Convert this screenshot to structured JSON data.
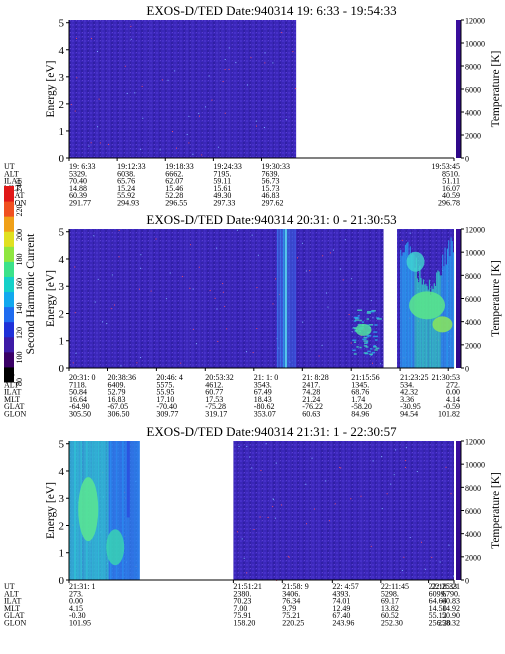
{
  "colorbar": {
    "label": "Second Harmonic Current",
    "ticks": [
      80,
      100,
      120,
      140,
      160,
      180,
      200,
      220,
      240
    ],
    "range": [
      80,
      240
    ],
    "colors": [
      "#000000",
      "#3a0066",
      "#3d1aa6",
      "#1f30d8",
      "#1f6cf0",
      "#12a8ee",
      "#15d0c8",
      "#3ce28a",
      "#8fe640",
      "#e0e020",
      "#f0a018",
      "#f05020",
      "#e01818"
    ]
  },
  "colors": {
    "background_plasma": "#3a24b6",
    "no_data": "#ffffff",
    "temperature_bar": "#3b0fa0",
    "accent_lines": "#3ad8e8"
  },
  "chart_data": [
    {
      "type": "heatmap",
      "title": "EXOS-D/TED   Date:940314  19: 6:33 - 19:54:33",
      "ylabel": "Energy [eV]",
      "y2label": "Temperature [K]",
      "yticks": [
        0,
        1,
        2,
        3,
        4,
        5
      ],
      "ylim": [
        0,
        5.1
      ],
      "y2ticks": [
        0,
        2000,
        4000,
        6000,
        8000,
        10000,
        12000
      ],
      "y2lim": [
        0,
        12000
      ],
      "time_range": [
        "19:06:33",
        "19:54:33"
      ],
      "data_coverage": [
        [
          0,
          0.59
        ]
      ],
      "features": [],
      "ephemeris": {
        "rows": [
          "UT",
          "ALT",
          "ILAT",
          "MLT",
          "GLAT",
          "GLON"
        ],
        "columns": [
          {
            "pos": 0.0,
            "values": [
              "19: 6:33",
              "5329.",
              "70.40",
              "14.88",
              "60.39",
              "291.77"
            ]
          },
          {
            "pos": 0.125,
            "values": [
              "19:12:33",
              "6038.",
              "65.76",
              "15.24",
              "55.92",
              "294.93"
            ]
          },
          {
            "pos": 0.25,
            "values": [
              "19:18:33",
              "6662.",
              "62.07",
              "15.46",
              "52.28",
              "296.55"
            ]
          },
          {
            "pos": 0.375,
            "values": [
              "19:24:33",
              "7195.",
              "59.11",
              "15.61",
              "49.30",
              "297.33"
            ]
          },
          {
            "pos": 0.5,
            "values": [
              "19:30:33",
              "7639.",
              "56.73",
              "15.73",
              "46.83",
              "297.62"
            ]
          },
          {
            "pos": 1.0,
            "values": [
              "19:53:45",
              "8510.",
              "51.11",
              "16.07",
              "40.59",
              "296.78"
            ]
          }
        ]
      }
    },
    {
      "type": "heatmap",
      "title": "EXOS-D/TED   Date:940314  20:31: 0 - 21:30:53",
      "ylabel": "Energy [eV]",
      "y2label": "Temperature [K]",
      "yticks": [
        0,
        1,
        2,
        3,
        4,
        5
      ],
      "ylim": [
        0,
        5.1
      ],
      "y2ticks": [
        0,
        2000,
        4000,
        6000,
        8000,
        10000,
        12000
      ],
      "y2lim": [
        0,
        12000
      ],
      "time_range": [
        "20:31:00",
        "21:30:53"
      ],
      "data_coverage": [
        [
          0,
          0.817
        ],
        [
          0.852,
          1.0
        ]
      ],
      "features": [
        {
          "kind": "vertical_band",
          "from": 0.54,
          "to": 0.59,
          "intensity": 0.55
        },
        {
          "kind": "low_energy_patch",
          "from": 0.735,
          "to": 0.8,
          "ymax": 2.2,
          "intensity": 0.45
        },
        {
          "kind": "burst",
          "from": 0.86,
          "to": 1.0,
          "intensity": 0.8
        }
      ],
      "ephemeris": {
        "rows": [
          "UT",
          "ALT",
          "ILAT",
          "MLT",
          "GLAT",
          "GLON"
        ],
        "columns": [
          {
            "pos": 0.0,
            "values": [
              "20:31: 0",
              "7118.",
              "50.84",
              "16.64",
              "-64.90",
              "305.50"
            ]
          },
          {
            "pos": 0.1,
            "values": [
              "20:38:36",
              "6409.",
              "52.79",
              "16.83",
              "-67.05",
              "306.50"
            ]
          },
          {
            "pos": 0.227,
            "values": [
              "20:46: 4",
              "5575.",
              "55.95",
              "17.10",
              "-70.40",
              "309.77"
            ]
          },
          {
            "pos": 0.354,
            "values": [
              "20:53:32",
              "4612.",
              "60.77",
              "17.53",
              "-75.28",
              "319.17"
            ]
          },
          {
            "pos": 0.48,
            "values": [
              "21: 1: 0",
              "3543.",
              "67.49",
              "18.43",
              "-80.62",
              "353.07"
            ]
          },
          {
            "pos": 0.606,
            "values": [
              "21: 8:28",
              "2417.",
              "74.28",
              "21.24",
              "-76.22",
              "60.63"
            ]
          },
          {
            "pos": 0.733,
            "values": [
              "21:15:56",
              "1345.",
              "68.76",
              "1.74",
              "-58.20",
              "84.96"
            ]
          },
          {
            "pos": 0.86,
            "values": [
              "21:23:25",
              "534.",
              "42.32",
              "3.36",
              "-30.95",
              "94.54"
            ]
          },
          {
            "pos": 0.985,
            "values": [
              "21:30:53",
              "272.",
              "0.00",
              "4.14",
              "-0.59",
              "101.82"
            ]
          }
        ]
      }
    },
    {
      "type": "heatmap",
      "title": "EXOS-D/TED   Date:940314  21:31: 1 - 22:30:57",
      "ylabel": "Energy [eV]",
      "y2label": "Temperature [K]",
      "yticks": [
        0,
        1,
        2,
        3,
        4,
        5
      ],
      "ylim": [
        0,
        5.1
      ],
      "y2ticks": [
        0,
        2000,
        4000,
        6000,
        8000,
        10000,
        12000
      ],
      "y2lim": [
        0,
        12000
      ],
      "time_range": [
        "21:31:01",
        "22:30:57"
      ],
      "data_coverage": [
        [
          0,
          0.183
        ],
        [
          0.427,
          1.0
        ]
      ],
      "features": [
        {
          "kind": "burst_left",
          "from": 0.0,
          "to": 0.183,
          "intensity": 0.85
        }
      ],
      "ephemeris": {
        "rows": [
          "UT",
          "ALT",
          "ILAT",
          "MLT",
          "GLAT",
          "GLON"
        ],
        "columns": [
          {
            "pos": 0.0,
            "values": [
              "21:31: 1",
              "273.",
              "0.00",
              "4.15",
              "-0.30",
              "101.95"
            ]
          },
          {
            "pos": 0.427,
            "values": [
              "21:51:21",
              "2380.",
              "70.23",
              "7.00",
              "75.91",
              "158.20"
            ]
          },
          {
            "pos": 0.554,
            "values": [
              "21:58: 9",
              "3406.",
              "76.34",
              "9.79",
              "75.21",
              "220.25"
            ]
          },
          {
            "pos": 0.684,
            "values": [
              "22: 4:57",
              "4393.",
              "74.01",
              "12.49",
              "67.40",
              "243.96"
            ]
          },
          {
            "pos": 0.81,
            "values": [
              "22:11:45",
              "5298.",
              "69.17",
              "13.82",
              "60.52",
              "252.30"
            ]
          },
          {
            "pos": 0.934,
            "values": [
              "22:18:33",
              "6099.",
              "64.64",
              "14.50",
              "55.12",
              "256.20"
            ]
          },
          {
            "pos": 1.06,
            "values": [
              "22:25:21",
              "6790.",
              "60.83",
              "14.92",
              "50.90",
              "258.32"
            ]
          }
        ]
      }
    }
  ]
}
